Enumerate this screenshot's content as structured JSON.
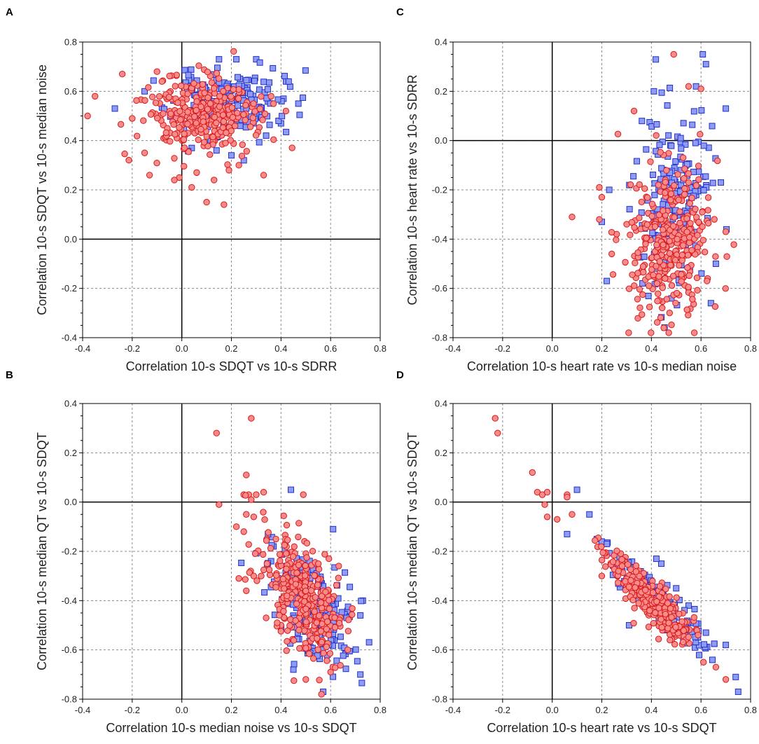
{
  "figure": {
    "marker_styles": {
      "circle": {
        "fill": "#f98b8b",
        "stroke": "#d8191a"
      },
      "square": {
        "fill": "#8f9cf6",
        "stroke": "#2230c8"
      }
    },
    "colors": {
      "grid": "#8a8a8a",
      "zero_axis": "#000000",
      "frame": "#000000"
    }
  },
  "chart_data": [
    {
      "panel": "A",
      "type": "scatter",
      "title": "",
      "xlabel": "Correlation 10-s SDQT vs 10-s SDRR",
      "ylabel": "Correlation 10-s SDQT vs 10-s median noise",
      "xlim": [
        -0.4,
        0.8
      ],
      "ylim": [
        -0.4,
        0.8
      ],
      "xticks": [
        "-0.4",
        "-0.2",
        "0.0",
        "0.2",
        "0.4",
        "0.6",
        "0.8"
      ],
      "yticks": [
        "-0.4",
        "-0.2",
        "0.0",
        "0.2",
        "0.4",
        "0.6",
        "0.8"
      ],
      "grid": true,
      "series": [
        {
          "name": "squares",
          "marker": "square",
          "cloud": {
            "n": 170,
            "cx": 0.18,
            "cy": 0.55,
            "sx": 0.11,
            "sy": 0.065,
            "rho": 0.1,
            "seed": 11
          },
          "points": [
            [
              0.22,
              0.73
            ],
            [
              0.15,
              0.73
            ],
            [
              0.3,
              0.73
            ],
            [
              0.41,
              0.57
            ],
            [
              0.47,
              0.55
            ],
            [
              -0.27,
              0.53
            ],
            [
              -0.15,
              0.6
            ],
            [
              0.4,
              0.47
            ],
            [
              0.39,
              0.48
            ],
            [
              0.34,
              0.42
            ],
            [
              0.14,
              0.36
            ],
            [
              0.11,
              0.4
            ],
            [
              0.25,
              0.32
            ],
            [
              0.2,
              0.34
            ],
            [
              0.04,
              0.37
            ]
          ]
        },
        {
          "name": "circles",
          "marker": "circle",
          "cloud": {
            "n": 290,
            "cx": 0.07,
            "cy": 0.5,
            "sx": 0.11,
            "sy": 0.08,
            "rho": 0.0,
            "seed": 23
          },
          "points": [
            [
              -0.38,
              0.5
            ],
            [
              -0.35,
              0.58
            ],
            [
              -0.24,
              0.67
            ],
            [
              -0.2,
              0.49
            ],
            [
              -0.1,
              0.68
            ],
            [
              0.06,
              0.27
            ],
            [
              0.1,
              0.15
            ],
            [
              0.17,
              0.14
            ],
            [
              0.13,
              0.24
            ],
            [
              0.33,
              0.26
            ],
            [
              0.19,
              0.28
            ],
            [
              -0.01,
              0.25
            ],
            [
              -0.03,
              0.24
            ],
            [
              0.04,
              0.21
            ],
            [
              0.36,
              0.58
            ],
            [
              0.37,
              0.55
            ],
            [
              0.42,
              0.52
            ],
            [
              -0.15,
              0.35
            ],
            [
              -0.13,
              0.26
            ],
            [
              0.23,
              0.3
            ]
          ]
        }
      ]
    },
    {
      "panel": "C",
      "type": "scatter",
      "title": "",
      "xlabel": "Correlation 10-s heart rate vs 10-s median noise",
      "ylabel": "Correlation 10-s heart rate vs 10-s SDRR",
      "xlim": [
        -0.4,
        0.8
      ],
      "ylim": [
        -0.8,
        0.4
      ],
      "xticks": [
        "-0.4",
        "-0.2",
        "0.0",
        "0.2",
        "0.4",
        "0.6",
        "0.8"
      ],
      "yticks": [
        "-0.8",
        "-0.6",
        "-0.4",
        "-0.2",
        "0.0",
        "0.2",
        "0.4"
      ],
      "grid": true,
      "series": [
        {
          "name": "squares",
          "marker": "square",
          "cloud": {
            "n": 180,
            "cx": 0.5,
            "cy": -0.22,
            "sx": 0.07,
            "sy": 0.19,
            "rho": 0.15,
            "seed": 37
          },
          "points": [
            [
              0.62,
              0.31
            ],
            [
              0.58,
              0.22
            ],
            [
              0.7,
              0.13
            ],
            [
              0.2,
              -0.33
            ],
            [
              0.22,
              -0.57
            ],
            [
              0.23,
              -0.2
            ],
            [
              0.41,
              0.2
            ],
            [
              0.64,
              -0.66
            ],
            [
              0.66,
              -0.5
            ],
            [
              0.68,
              -0.17
            ]
          ]
        },
        {
          "name": "circles",
          "marker": "circle",
          "cloud": {
            "n": 320,
            "cx": 0.47,
            "cy": -0.4,
            "sx": 0.08,
            "sy": 0.17,
            "rho": 0.1,
            "seed": 41
          },
          "points": [
            [
              0.49,
              0.35
            ],
            [
              0.08,
              -0.31
            ],
            [
              0.19,
              -0.19
            ],
            [
              0.2,
              -0.23
            ],
            [
              0.19,
              -0.32
            ],
            [
              0.47,
              -0.78
            ],
            [
              0.45,
              -0.76
            ],
            [
              0.33,
              0.12
            ],
            [
              0.55,
              0.22
            ],
            [
              0.6,
              0.21
            ],
            [
              0.7,
              -0.37
            ],
            [
              0.24,
              -0.46
            ],
            [
              0.26,
              -0.38
            ]
          ]
        }
      ]
    },
    {
      "panel": "B",
      "type": "scatter",
      "title": "",
      "xlabel": "Correlation 10-s median noise vs 10-s SDQT",
      "ylabel": "Correlation 10-s median QT vs 10-s SDQT",
      "xlim": [
        -0.4,
        0.8
      ],
      "ylim": [
        -0.8,
        0.4
      ],
      "xticks": [
        "-0.4",
        "-0.2",
        "0.0",
        "0.2",
        "0.4",
        "0.6",
        "0.8"
      ],
      "yticks": [
        "-0.8",
        "-0.6",
        "-0.4",
        "-0.2",
        "0.0",
        "0.2",
        "0.4"
      ],
      "grid": true,
      "series": [
        {
          "name": "squares",
          "marker": "square",
          "cloud": {
            "n": 180,
            "cx": 0.53,
            "cy": -0.43,
            "sx": 0.085,
            "sy": 0.12,
            "rho": -0.55,
            "seed": 53
          },
          "points": [
            [
              0.44,
              0.05
            ],
            [
              0.57,
              -0.77
            ],
            [
              0.72,
              -0.7
            ],
            [
              0.73,
              -0.4
            ],
            [
              0.72,
              -0.46
            ],
            [
              0.37,
              -0.18
            ],
            [
              0.36,
              -0.24
            ],
            [
              0.45,
              -0.68
            ],
            [
              0.61,
              -0.11
            ]
          ]
        },
        {
          "name": "circles",
          "marker": "circle",
          "cloud": {
            "n": 320,
            "cx": 0.48,
            "cy": -0.38,
            "sx": 0.085,
            "sy": 0.13,
            "rho": -0.55,
            "seed": 61
          },
          "points": [
            [
              0.14,
              0.28
            ],
            [
              0.28,
              0.34
            ],
            [
              0.15,
              -0.01
            ],
            [
              0.26,
              0.11
            ],
            [
              0.25,
              0.03
            ],
            [
              0.27,
              0.03
            ],
            [
              0.28,
              0.01
            ],
            [
              0.3,
              0.03
            ],
            [
              0.33,
              0.04
            ],
            [
              0.49,
              0.03
            ],
            [
              0.22,
              -0.1
            ],
            [
              0.25,
              -0.12
            ],
            [
              0.26,
              -0.05
            ],
            [
              0.29,
              -0.06
            ],
            [
              0.23,
              -0.31
            ],
            [
              0.26,
              -0.36
            ],
            [
              0.29,
              -0.3
            ],
            [
              0.34,
              -0.47
            ],
            [
              0.32,
              -0.3
            ],
            [
              0.5,
              -0.72
            ],
            [
              0.6,
              -0.69
            ],
            [
              0.4,
              -0.5
            ]
          ]
        }
      ]
    },
    {
      "panel": "D",
      "type": "scatter",
      "title": "",
      "xlabel": "Correlation 10-s heart rate vs 10-s SDQT",
      "ylabel": "Correlation 10-s median QT vs 10-s SDQT",
      "xlim": [
        -0.4,
        0.8
      ],
      "ylim": [
        -0.8,
        0.4
      ],
      "xticks": [
        "-0.4",
        "-0.2",
        "0.0",
        "0.2",
        "0.4",
        "0.6",
        "0.8"
      ],
      "yticks": [
        "-0.8",
        "-0.6",
        "-0.4",
        "-0.2",
        "0.0",
        "0.2",
        "0.4"
      ],
      "grid": true,
      "series": [
        {
          "name": "squares",
          "marker": "square",
          "trend": {
            "n": 150,
            "x0": 0.13,
            "x1": 0.72,
            "slope": -0.88,
            "intercept": -0.02,
            "sx": 0.0,
            "sy": 0.04,
            "seed": 71
          },
          "points": [
            [
              0.1,
              0.05
            ],
            [
              0.06,
              -0.13
            ],
            [
              0.15,
              -0.05
            ],
            [
              0.31,
              -0.5
            ],
            [
              0.43,
              -0.47
            ],
            [
              0.45,
              -0.52
            ],
            [
              0.75,
              -0.77
            ],
            [
              0.74,
              -0.71
            ],
            [
              0.7,
              -0.58
            ],
            [
              0.62,
              -0.53
            ],
            [
              0.55,
              -0.42
            ],
            [
              0.5,
              -0.35
            ],
            [
              0.44,
              -0.25
            ],
            [
              0.42,
              -0.23
            ],
            [
              0.21,
              -0.17
            ],
            [
              0.18,
              -0.15
            ]
          ]
        },
        {
          "name": "circles",
          "marker": "circle",
          "trend": {
            "n": 260,
            "x0": 0.13,
            "x1": 0.66,
            "slope": -0.95,
            "intercept": -0.02,
            "sx": 0.0,
            "sy": 0.045,
            "seed": 83
          },
          "points": [
            [
              -0.23,
              0.34
            ],
            [
              -0.22,
              0.28
            ],
            [
              -0.08,
              0.12
            ],
            [
              -0.06,
              0.04
            ],
            [
              -0.04,
              0.03
            ],
            [
              -0.02,
              0.04
            ],
            [
              -0.03,
              -0.01
            ],
            [
              -0.02,
              -0.06
            ],
            [
              0.06,
              0.03
            ],
            [
              0.06,
              0.02
            ],
            [
              0.02,
              -0.07
            ],
            [
              0.08,
              -0.05
            ],
            [
              0.2,
              -0.3
            ],
            [
              0.7,
              -0.72
            ],
            [
              0.66,
              -0.67
            ],
            [
              0.61,
              -0.65
            ]
          ]
        }
      ]
    }
  ]
}
